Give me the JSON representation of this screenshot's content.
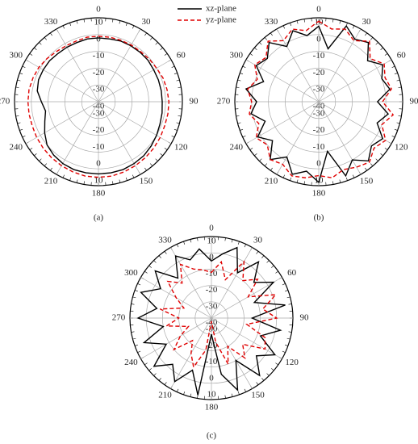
{
  "chart_data": [
    {
      "type": "polar",
      "caption": "(a)",
      "theta": [
        0,
        10,
        20,
        30,
        40,
        50,
        60,
        70,
        80,
        90,
        100,
        110,
        120,
        130,
        140,
        150,
        160,
        170,
        180,
        190,
        200,
        210,
        220,
        230,
        240,
        250,
        260,
        270,
        280,
        290,
        300,
        310,
        320,
        330,
        340,
        350
      ],
      "rlim": [
        -40,
        10
      ],
      "rticks": [
        -40,
        -30,
        -20,
        -10,
        0,
        10
      ],
      "thetaticks": [
        0,
        30,
        60,
        90,
        120,
        150,
        180,
        210,
        240,
        270,
        300,
        330
      ],
      "series": [
        {
          "name": "xz-plane",
          "color": "#000000",
          "dash": false,
          "values": [
            -2,
            -2,
            -1.5,
            -1.5,
            -1.5,
            -1.5,
            -2,
            -2,
            -2,
            -2,
            -1.5,
            -1,
            0,
            1,
            2,
            2.5,
            3,
            3,
            3,
            3,
            3,
            2.5,
            1.5,
            0,
            -3,
            -6,
            -8,
            -6,
            -3,
            -2,
            -2,
            -2,
            -2.5,
            -2.5,
            -2.5,
            -2
          ]
        },
        {
          "name": "yz-plane",
          "color": "#e00000",
          "dash": true,
          "values": [
            -1,
            -1,
            -1,
            -1,
            -1,
            -0.5,
            0,
            1,
            1.5,
            2,
            2,
            2,
            2.5,
            3,
            3.5,
            4,
            4.5,
            5,
            5,
            5,
            4.5,
            4,
            3.5,
            3,
            2.5,
            2,
            2,
            2,
            2,
            1.5,
            1,
            0,
            -1,
            -1.5,
            -1.5,
            -1
          ]
        }
      ]
    },
    {
      "type": "polar",
      "caption": "(b)",
      "theta": [
        0,
        10,
        20,
        30,
        40,
        50,
        60,
        70,
        80,
        90,
        100,
        110,
        120,
        130,
        140,
        150,
        160,
        170,
        180,
        190,
        200,
        210,
        220,
        230,
        240,
        250,
        260,
        270,
        280,
        290,
        300,
        310,
        320,
        330,
        340,
        350
      ],
      "rlim": [
        -40,
        10
      ],
      "rticks": [
        -40,
        -30,
        -20,
        -10,
        0,
        10
      ],
      "thetaticks": [
        0,
        30,
        60,
        90,
        120,
        150,
        180,
        210,
        240,
        270,
        300,
        330
      ],
      "series": [
        {
          "color": "#000000",
          "dash": false,
          "values": [
            5,
            -8,
            8,
            3,
            6,
            -2,
            4,
            0,
            3,
            -5,
            2,
            -3,
            4,
            1,
            6,
            0,
            7,
            -10,
            8,
            2,
            6,
            -2,
            5,
            -4,
            2,
            -6,
            1,
            -3,
            4,
            -5,
            3,
            0,
            6,
            -2,
            5,
            0
          ]
        },
        {
          "color": "#e00000",
          "dash": true,
          "values": [
            8,
            4,
            6,
            2,
            7,
            0,
            5,
            2,
            4,
            -2,
            5,
            0,
            6,
            3,
            7,
            5,
            3,
            6,
            4,
            6,
            7,
            3,
            5,
            0,
            3,
            -2,
            2,
            0,
            3,
            -1,
            4,
            1,
            7,
            2,
            6,
            3
          ]
        }
      ]
    },
    {
      "type": "polar",
      "caption": "(c)",
      "theta": [
        0,
        10,
        20,
        30,
        40,
        50,
        60,
        70,
        80,
        90,
        100,
        110,
        120,
        130,
        140,
        150,
        160,
        170,
        180,
        190,
        200,
        210,
        220,
        230,
        240,
        250,
        260,
        270,
        280,
        290,
        300,
        310,
        320,
        330,
        340,
        350
      ],
      "rlim": [
        -40,
        10
      ],
      "rticks": [
        -40,
        -30,
        -20,
        -10,
        0,
        10
      ],
      "thetaticks": [
        0,
        30,
        60,
        90,
        120,
        150,
        180,
        210,
        240,
        270,
        300,
        330
      ],
      "series": [
        {
          "color": "#000000",
          "dash": false,
          "values": [
            -5,
            0,
            6,
            -8,
            5,
            -6,
            4,
            -12,
            6,
            -15,
            3,
            -8,
            5,
            -4,
            6,
            -10,
            7,
            -5,
            -30,
            8,
            -6,
            5,
            -3,
            6,
            -8,
            4,
            -10,
            5,
            -6,
            6,
            -4,
            5,
            -8,
            4,
            -2,
            3
          ]
        },
        {
          "color": "#e00000",
          "dash": true,
          "values": [
            -12,
            -5,
            -15,
            0,
            -10,
            -3,
            -14,
            2,
            -8,
            0,
            -18,
            -5,
            -2,
            -15,
            -8,
            -20,
            -10,
            -25,
            -38,
            -20,
            -8,
            -15,
            -22,
            -10,
            -18,
            -25,
            -12,
            -20,
            -8,
            -22,
            -15,
            -5,
            -12,
            -2,
            -8,
            -10
          ]
        }
      ]
    }
  ]
}
